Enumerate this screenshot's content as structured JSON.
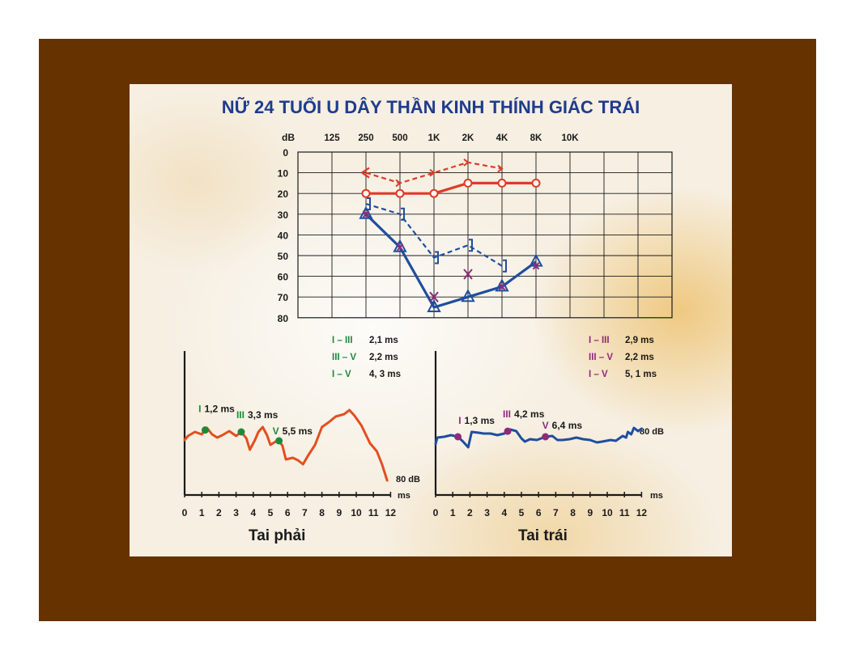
{
  "title": "NỮ 24 TUỔI U DÂY THẦN KINH THÍNH GIÁC TRÁI",
  "colors": {
    "frame": "#663300",
    "title": "#1f3c8c",
    "right_ear": "#e03a25",
    "left_ear": "#1f4e9e",
    "purple": "#8e2a7a",
    "green": "#1d8a3a",
    "abr_right": "#e34e1f"
  },
  "chart_data": [
    {
      "type": "line",
      "chart_id": "audiogram",
      "ylabel": "dB",
      "x_ticks": [
        "125",
        "250",
        "500",
        "1K",
        "2K",
        "4K",
        "8K",
        "10K"
      ],
      "y_ticks": [
        "0",
        "10",
        "20",
        "30",
        "40",
        "50",
        "60",
        "70",
        "80"
      ],
      "ylim": [
        0,
        80
      ],
      "y_inverted": true,
      "series": [
        {
          "id": "right_air",
          "color": "#e03a25",
          "style": "solid",
          "marker": "circle",
          "x": [
            "250",
            "500",
            "1K",
            "2K",
            "4K",
            "8K"
          ],
          "y": [
            20,
            20,
            20,
            15,
            15,
            15
          ]
        },
        {
          "id": "right_bone",
          "color": "#e03a25",
          "style": "dashed",
          "marker": "arrow",
          "x": [
            "250",
            "500",
            "1K",
            "2K",
            "4K"
          ],
          "y": [
            10,
            15,
            10,
            5,
            8
          ]
        },
        {
          "id": "left_air",
          "color": "#1f4e9e",
          "style": "solid",
          "marker": "triangle",
          "x": [
            "250",
            "500",
            "1K",
            "2K",
            "4K",
            "8K"
          ],
          "y": [
            30,
            46,
            75,
            70,
            65,
            53
          ]
        },
        {
          "id": "left_bone",
          "color": "#1f4e9e",
          "style": "dashed",
          "marker": "bracket",
          "x": [
            "250",
            "500",
            "1K",
            "2K",
            "4K"
          ],
          "y": [
            25,
            30,
            51,
            45,
            55
          ]
        },
        {
          "id": "left_markers",
          "color": "#8e2a7a",
          "style": "none",
          "marker": "x",
          "x": [
            "1K",
            "2K"
          ],
          "y": [
            70,
            59
          ]
        },
        {
          "id": "left_overlay_markers",
          "color": "#8e2a7a",
          "style": "none",
          "marker": "triangle-x",
          "x": [
            "250",
            "500",
            "4K",
            "8K"
          ],
          "y": [
            30,
            46,
            65,
            55
          ]
        }
      ]
    },
    {
      "type": "line",
      "chart_id": "abr_right",
      "caption": "Tai phải",
      "xlabel": "ms",
      "x_ticks": [
        "0",
        "1",
        "2",
        "3",
        "4",
        "5",
        "6",
        "7",
        "8",
        "9",
        "10",
        "11",
        "12"
      ],
      "xlim": [
        0,
        12
      ],
      "intensity_label": "80 dB",
      "peaks": [
        {
          "label": "I",
          "latency": "1,2 ms",
          "x": 1.2
        },
        {
          "label": "III",
          "latency": "3,3 ms",
          "x": 3.3
        },
        {
          "label": "V",
          "latency": "5,5 ms",
          "x": 5.5
        }
      ],
      "intervals": [
        {
          "label": "I – III",
          "value": "2,1 ms"
        },
        {
          "label": "III – V",
          "value": "2,2 ms"
        },
        {
          "label": "I – V",
          "value": "4, 3 ms"
        }
      ],
      "waveform": [
        [
          0,
          42
        ],
        [
          0.2,
          47
        ],
        [
          0.6,
          52
        ],
        [
          1.0,
          49
        ],
        [
          1.3,
          57
        ],
        [
          1.6,
          49
        ],
        [
          1.9,
          45
        ],
        [
          2.2,
          48
        ],
        [
          2.6,
          53
        ],
        [
          3.0,
          47
        ],
        [
          3.3,
          52
        ],
        [
          3.6,
          44
        ],
        [
          3.8,
          30
        ],
        [
          4.1,
          42
        ],
        [
          4.3,
          52
        ],
        [
          4.55,
          58
        ],
        [
          4.8,
          48
        ],
        [
          5.0,
          36
        ],
        [
          5.3,
          40
        ],
        [
          5.5,
          41
        ],
        [
          5.7,
          35
        ],
        [
          5.9,
          18
        ],
        [
          6.3,
          20
        ],
        [
          6.6,
          17
        ],
        [
          6.9,
          12
        ],
        [
          7.2,
          23
        ],
        [
          7.6,
          36
        ],
        [
          8.0,
          58
        ],
        [
          8.4,
          64
        ],
        [
          8.8,
          71
        ],
        [
          9.3,
          74
        ],
        [
          9.6,
          79
        ],
        [
          9.9,
          72
        ],
        [
          10.3,
          60
        ],
        [
          10.8,
          38
        ],
        [
          11.2,
          28
        ],
        [
          11.5,
          12
        ],
        [
          11.8,
          -8
        ]
      ]
    },
    {
      "type": "line",
      "chart_id": "abr_left",
      "caption": "Tai trái",
      "xlabel": "ms",
      "x_ticks": [
        "0",
        "1",
        "2",
        "3",
        "4",
        "5",
        "6",
        "7",
        "8",
        "9",
        "10",
        "11",
        "12"
      ],
      "xlim": [
        0,
        12
      ],
      "intensity_label": "80 dB",
      "peaks": [
        {
          "label": "I",
          "latency": "1,3 ms",
          "x": 1.3
        },
        {
          "label": "III",
          "latency": "4,2 ms",
          "x": 4.2
        },
        {
          "label": "V",
          "latency": "6,4 ms",
          "x": 6.4
        }
      ],
      "intervals": [
        {
          "label": "I – III",
          "value": "2,9 ms"
        },
        {
          "label": "III – V",
          "value": "2,2 ms"
        },
        {
          "label": "I – V",
          "value": "5, 1 ms"
        }
      ],
      "waveform": [
        [
          0,
          37
        ],
        [
          0.1,
          45
        ],
        [
          0.5,
          46
        ],
        [
          0.9,
          48
        ],
        [
          1.3,
          46
        ],
        [
          1.6,
          40
        ],
        [
          1.9,
          33
        ],
        [
          2.1,
          52
        ],
        [
          2.5,
          51
        ],
        [
          2.8,
          50
        ],
        [
          3.2,
          50
        ],
        [
          3.6,
          48
        ],
        [
          4.0,
          50
        ],
        [
          4.35,
          55
        ],
        [
          4.7,
          53
        ],
        [
          5.0,
          44
        ],
        [
          5.2,
          40
        ],
        [
          5.5,
          43
        ],
        [
          5.9,
          42
        ],
        [
          6.4,
          46
        ],
        [
          6.8,
          47
        ],
        [
          7.1,
          42
        ],
        [
          7.4,
          42
        ],
        [
          7.8,
          43
        ],
        [
          8.2,
          45
        ],
        [
          8.6,
          43
        ],
        [
          9.0,
          42
        ],
        [
          9.4,
          39
        ],
        [
          9.7,
          40
        ],
        [
          10.2,
          42
        ],
        [
          10.5,
          41
        ],
        [
          10.9,
          47
        ],
        [
          11.1,
          45
        ],
        [
          11.2,
          52
        ],
        [
          11.4,
          49
        ],
        [
          11.55,
          57
        ],
        [
          11.8,
          53
        ],
        [
          12.0,
          56
        ]
      ]
    }
  ]
}
